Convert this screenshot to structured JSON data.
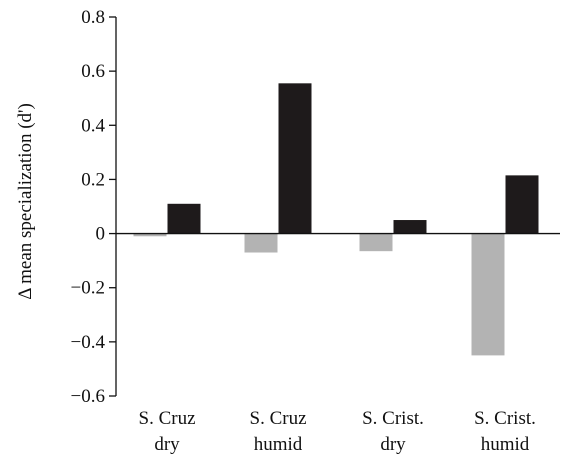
{
  "chart_data": {
    "type": "bar",
    "categories": [
      [
        "S. Cruz",
        "dry"
      ],
      [
        "S. Cruz",
        "humid"
      ],
      [
        "S. Crist.",
        "dry"
      ],
      [
        "S. Crist.",
        "humid"
      ]
    ],
    "series": [
      {
        "values": [
          -0.01,
          -0.07,
          -0.065,
          -0.45
        ],
        "color": "#b3b3b3"
      },
      {
        "values": [
          0.11,
          0.555,
          0.05,
          0.215
        ],
        "color": "#1e1a1b"
      }
    ],
    "title": "",
    "xlabel": "",
    "ylabel": "Δ mean specialization (d')",
    "ylim": [
      -0.6,
      0.8
    ],
    "yticks": [
      -0.6,
      -0.4,
      -0.2,
      0,
      0.2,
      0.4,
      0.6,
      0.8
    ],
    "ytick_labels": [
      "−0.6",
      "−0.4",
      "−0.2",
      "0",
      "0.2",
      "0.4",
      "0.6",
      "0.8"
    ],
    "grid": false,
    "legend": "none"
  }
}
